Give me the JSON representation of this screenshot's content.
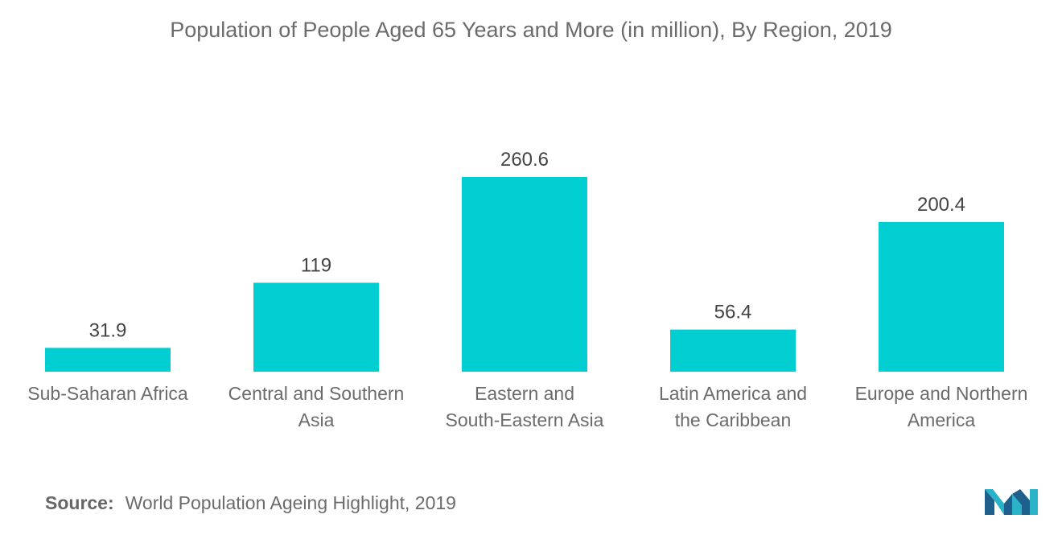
{
  "chart_data": {
    "type": "bar",
    "title": "Population of People Aged 65 Years and More (in million), By Region, 2019",
    "categories": [
      [
        "Sub-Saharan Africa"
      ],
      [
        "Central and Southern",
        "Asia"
      ],
      [
        "Eastern and",
        "South-Eastern Asia"
      ],
      [
        "Latin America and",
        "the Caribbean"
      ],
      [
        "Europe and Northern",
        "America"
      ]
    ],
    "values": [
      31.9,
      119,
      260.6,
      56.4,
      200.4
    ],
    "value_labels": [
      "31.9",
      "119",
      "260.6",
      "56.4",
      "200.4"
    ],
    "xlabel": "",
    "ylabel": "",
    "ylim": [
      0,
      260.6
    ],
    "grid": false,
    "legend": "none",
    "bar_color": "#00ced1"
  },
  "source": {
    "label": "Source:",
    "text": "World Population Ageing Highlight, 2019"
  },
  "colors": {
    "text": "#6b6b6b",
    "logo_dark": "#1e5f8c",
    "logo_light": "#2ab3c8"
  },
  "logo": {
    "icon": "mordor-intelligence-logo-icon"
  }
}
